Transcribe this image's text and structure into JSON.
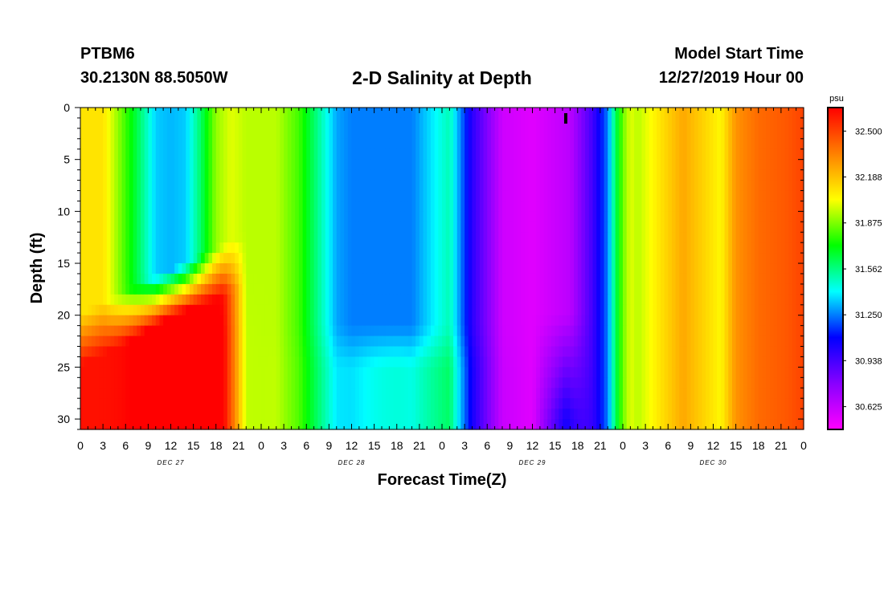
{
  "header": {
    "station_id": "PTBM6",
    "coordinates": "30.2130N 88.5050W",
    "model_label": "Model Start Time",
    "model_start": "12/27/2019 Hour 00"
  },
  "chart_data": {
    "type": "heatmap",
    "title": "2-D Salinity at Depth",
    "xlabel": "Forecast Time(Z)",
    "ylabel": "Depth (ft)",
    "x_ticks": [
      "0",
      "3",
      "6",
      "9",
      "12",
      "15",
      "18",
      "21",
      "0",
      "3",
      "6",
      "9",
      "12",
      "15",
      "18",
      "21",
      "0",
      "3",
      "6",
      "9",
      "12",
      "15",
      "18",
      "21",
      "0",
      "3",
      "6",
      "9",
      "12",
      "15",
      "18",
      "21",
      "0"
    ],
    "x_range_hours": [
      0,
      96
    ],
    "date_labels": [
      {
        "label": "DEC 27",
        "hour": 12
      },
      {
        "label": "DEC 28",
        "hour": 36
      },
      {
        "label": "DEC 29",
        "hour": 60
      },
      {
        "label": "DEC 30",
        "hour": 84
      }
    ],
    "y_ticks": [
      "0",
      "5",
      "10",
      "15",
      "20",
      "25",
      "30"
    ],
    "y_range_ft": [
      0,
      31
    ],
    "y_inverted": true,
    "colorbar": {
      "unit": "psu",
      "min": 30.47,
      "max": 32.66,
      "tick_labels": [
        "32.500",
        "32.188",
        "31.875",
        "31.562",
        "31.250",
        "30.938",
        "30.625"
      ],
      "tick_values": [
        32.5,
        32.188,
        31.875,
        31.562,
        31.25,
        30.938,
        30.625
      ],
      "colors": [
        "#ff00ff",
        "#8800ff",
        "#0000ff",
        "#00ffff",
        "#00ff00",
        "#ffff00",
        "#ff8000",
        "#ff0000"
      ]
    },
    "surface_profile": {
      "hours": [
        0,
        3,
        5,
        8,
        10,
        12,
        14,
        16,
        18,
        20,
        22,
        26,
        29,
        32,
        34,
        36,
        40,
        44,
        47,
        49,
        52,
        56,
        60,
        65,
        68,
        70,
        71,
        72,
        73,
        74,
        76,
        80,
        85,
        87,
        90,
        94,
        96
      ],
      "salinity": [
        32.1,
        32.1,
        31.9,
        31.58,
        31.35,
        31.32,
        31.35,
        31.6,
        31.9,
        32.0,
        31.95,
        31.95,
        31.8,
        31.5,
        31.3,
        31.25,
        31.25,
        31.25,
        31.4,
        31.5,
        31.0,
        30.6,
        30.55,
        30.65,
        30.95,
        31.25,
        31.6,
        31.85,
        32.0,
        31.95,
        32.05,
        32.25,
        32.05,
        32.3,
        32.4,
        32.45,
        32.5
      ]
    }
  }
}
